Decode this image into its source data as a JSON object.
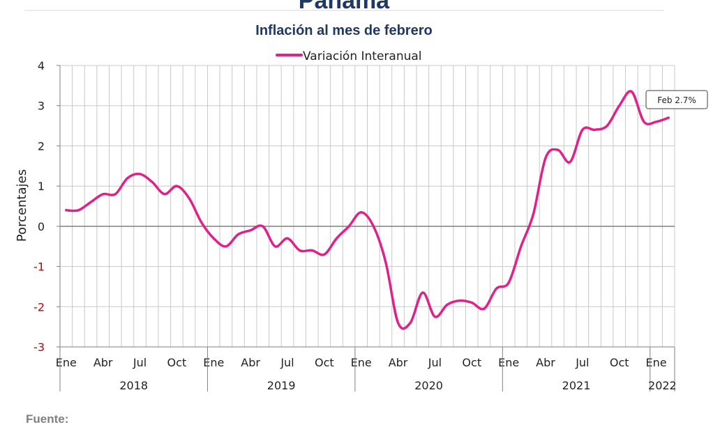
{
  "header": {
    "title": "Panamá",
    "subtitle": "Inflación al mes de febrero",
    "source_label": "Fuente:"
  },
  "chart_data": {
    "type": "line",
    "ylabel": "Porcentajes",
    "ylim": [
      -3,
      4
    ],
    "y_ticks": [
      "4",
      "3",
      "2",
      "1",
      "0",
      "-1",
      "-2",
      "-3"
    ],
    "grid": true,
    "legend_position": "top-center",
    "month_labels": [
      "Ene",
      "Abr",
      "Jul",
      "Oct",
      "Ene",
      "Abr",
      "Jul",
      "Oct",
      "Ene",
      "Abr",
      "Jul",
      "Oct",
      "Ene",
      "Abr",
      "Jul",
      "Oct",
      "Ene"
    ],
    "years": [
      "2018",
      "2019",
      "2020",
      "2021",
      "2022"
    ],
    "series": [
      {
        "name": "Variación Interanual",
        "color": "#e0218a",
        "values": [
          0.4,
          0.4,
          0.6,
          0.8,
          0.8,
          1.2,
          1.3,
          1.1,
          0.8,
          1.0,
          0.7,
          0.1,
          -0.3,
          -0.5,
          -0.2,
          -0.1,
          0.0,
          -0.5,
          -0.3,
          -0.6,
          -0.6,
          -0.7,
          -0.3,
          0.0,
          0.35,
          0.0,
          -0.9,
          -2.4,
          -2.4,
          -1.65,
          -2.25,
          -1.95,
          -1.85,
          -1.9,
          -2.05,
          -1.55,
          -1.4,
          -0.5,
          0.3,
          1.7,
          1.9,
          1.6,
          2.4,
          2.4,
          2.5,
          3.0,
          3.35,
          2.6,
          2.6,
          2.7
        ]
      }
    ],
    "callout": "Feb 2.7%"
  }
}
